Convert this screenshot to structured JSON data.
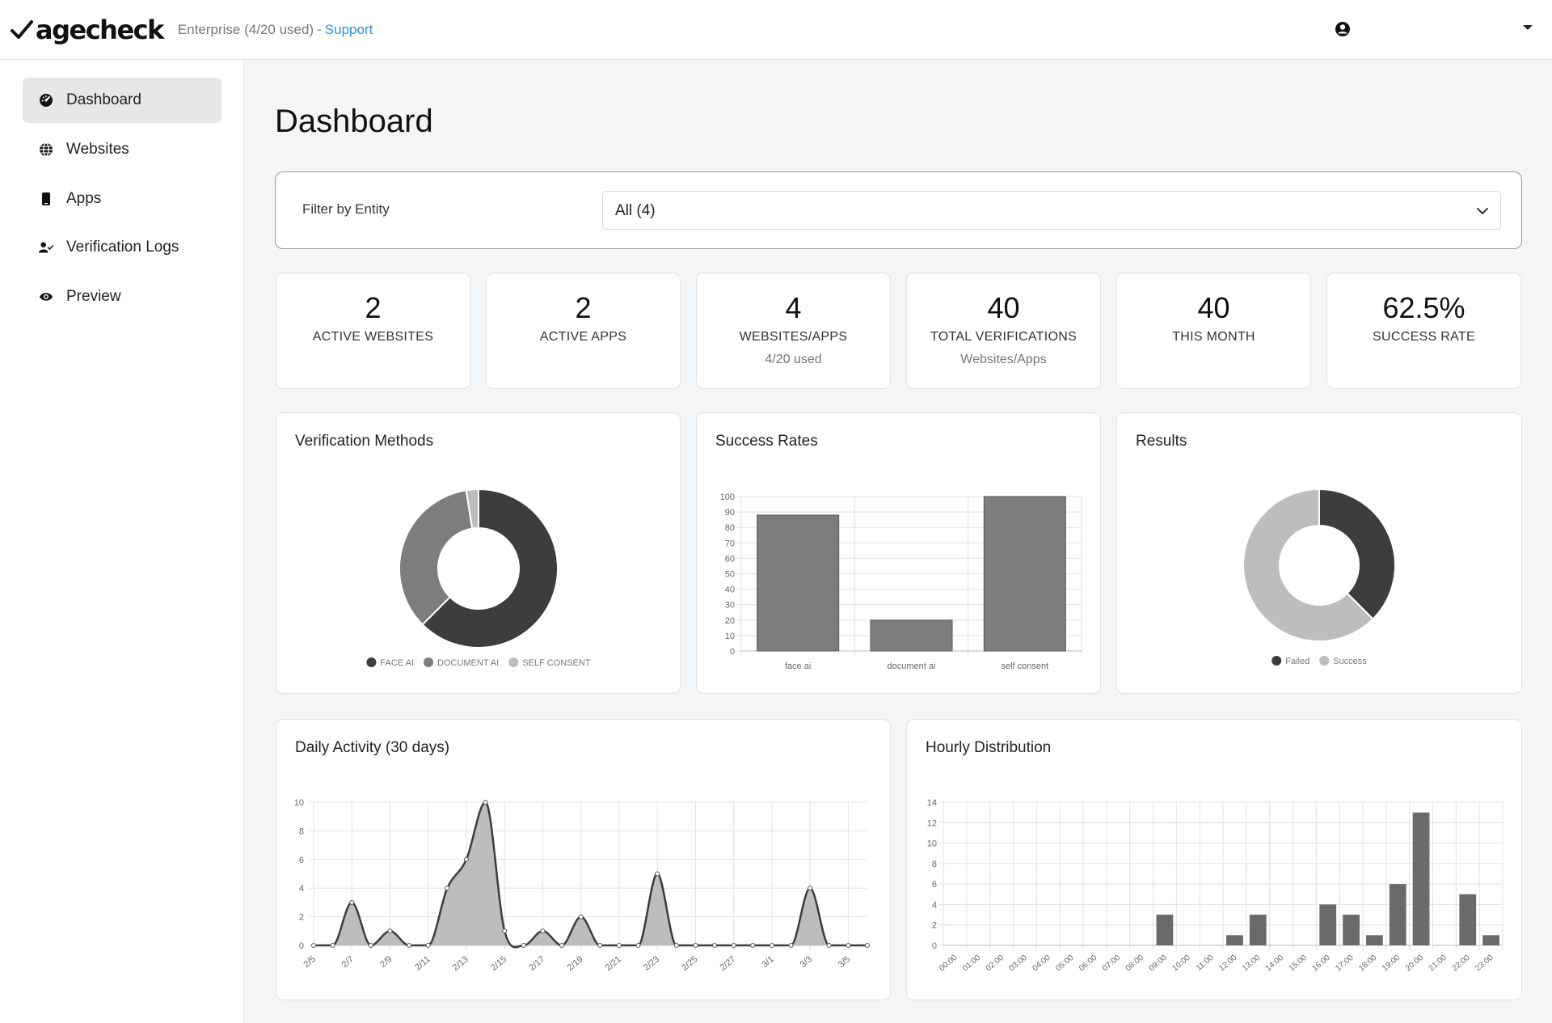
{
  "header": {
    "logo_text": "agecheck",
    "plan_text": "Enterprise (4/20 used)",
    "plan_separator": "-",
    "support_link": "Support",
    "colors": {
      "link": "#2f8fd5"
    },
    "icons": {
      "logo": "checkmark-icon",
      "user": "user-circle-icon",
      "menu": "caret-down-icon"
    }
  },
  "sidebar": {
    "items": [
      {
        "label": "Dashboard",
        "icon": "gauge-icon",
        "active": true
      },
      {
        "label": "Websites",
        "icon": "globe-icon",
        "active": false
      },
      {
        "label": "Apps",
        "icon": "mobile-icon",
        "active": false
      },
      {
        "label": "Verification Logs",
        "icon": "user-check-icon",
        "active": false
      },
      {
        "label": "Preview",
        "icon": "eye-icon",
        "active": false
      }
    ]
  },
  "main": {
    "title": "Dashboard",
    "filter": {
      "label": "Filter by Entity",
      "value": "All (4)"
    },
    "stats": [
      {
        "value": "2",
        "label": "ACTIVE WEBSITES",
        "sub": ""
      },
      {
        "value": "2",
        "label": "ACTIVE APPS",
        "sub": ""
      },
      {
        "value": "4",
        "label": "WEBSITES/APPS",
        "sub": "4/20 used"
      },
      {
        "value": "40",
        "label": "TOTAL VERIFICATIONS",
        "sub": "Websites/Apps"
      },
      {
        "value": "40",
        "label": "THIS MONTH",
        "sub": ""
      },
      {
        "value": "62.5%",
        "label": "SUCCESS RATE",
        "sub": ""
      }
    ],
    "cards": {
      "methods_title": "Verification Methods",
      "success_title": "Success Rates",
      "results_title": "Results",
      "daily_title": "Daily Activity (30 days)",
      "hourly_title": "Hourly Distribution"
    }
  },
  "chart_data": [
    {
      "type": "pie",
      "title": "Verification Methods",
      "labels": [
        "FACE AI",
        "DOCUMENT AI",
        "SELF CONSENT"
      ],
      "values": [
        62.5,
        35,
        2.5
      ],
      "colors": [
        "#3d3d3d",
        "#7d7d7d",
        "#bdbdbd"
      ],
      "legend": "bottom"
    },
    {
      "type": "bar",
      "title": "Success Rates",
      "categories": [
        "face ai",
        "document ai",
        "self consent"
      ],
      "values": [
        88,
        20,
        100
      ],
      "ylim": [
        0,
        100
      ],
      "yticks": [
        0,
        10,
        20,
        30,
        40,
        50,
        60,
        70,
        80,
        90,
        100
      ],
      "grid": true,
      "color": "#7d7d7d"
    },
    {
      "type": "pie",
      "title": "Results",
      "labels": [
        "Failed",
        "Success"
      ],
      "values": [
        37.5,
        62.5
      ],
      "colors": [
        "#3d3d3d",
        "#bdbdbd"
      ],
      "legend": "bottom"
    },
    {
      "type": "area",
      "title": "Daily Activity (30 days)",
      "x": [
        "2/5",
        "2/6",
        "2/7",
        "2/8",
        "2/9",
        "2/10",
        "2/11",
        "2/12",
        "2/13",
        "2/14",
        "2/15",
        "2/16",
        "2/17",
        "2/18",
        "2/19",
        "2/20",
        "2/21",
        "2/22",
        "2/23",
        "2/24",
        "2/25",
        "2/26",
        "2/27",
        "2/28",
        "3/1",
        "3/2",
        "3/3",
        "3/4",
        "3/5",
        "3/6"
      ],
      "xticklabels": [
        "2/5",
        "2/7",
        "2/9",
        "2/11",
        "2/13",
        "2/15",
        "2/17",
        "2/19",
        "2/21",
        "2/23",
        "2/25",
        "2/27",
        "3/1",
        "3/3",
        "3/5"
      ],
      "values": [
        0,
        0,
        3,
        0,
        1,
        0,
        0,
        4,
        6,
        10,
        1,
        0,
        1,
        0,
        2,
        0,
        0,
        0,
        5,
        0,
        0,
        0,
        0,
        0,
        0,
        0,
        4,
        0,
        0,
        0
      ],
      "ylim": [
        0,
        10
      ],
      "yticks": [
        0,
        2,
        4,
        6,
        8,
        10
      ],
      "grid": true,
      "fill": "#bdbdbd",
      "line": "#3d3d3d"
    },
    {
      "type": "bar",
      "title": "Hourly Distribution",
      "categories": [
        "00:00",
        "01:00",
        "02:00",
        "03:00",
        "04:00",
        "05:00",
        "06:00",
        "07:00",
        "08:00",
        "09:00",
        "10:00",
        "11:00",
        "12:00",
        "13:00",
        "14:00",
        "15:00",
        "16:00",
        "17:00",
        "18:00",
        "19:00",
        "20:00",
        "21:00",
        "22:00",
        "23:00"
      ],
      "values": [
        0,
        0,
        0,
        0,
        0,
        0,
        0,
        0,
        0,
        3,
        0,
        0,
        1,
        3,
        0,
        0,
        4,
        3,
        1,
        6,
        13,
        0,
        5,
        1
      ],
      "ylim": [
        0,
        14
      ],
      "yticks": [
        0,
        2,
        4,
        6,
        8,
        10,
        12,
        14
      ],
      "grid": true,
      "color": "#6a6a6a"
    }
  ]
}
